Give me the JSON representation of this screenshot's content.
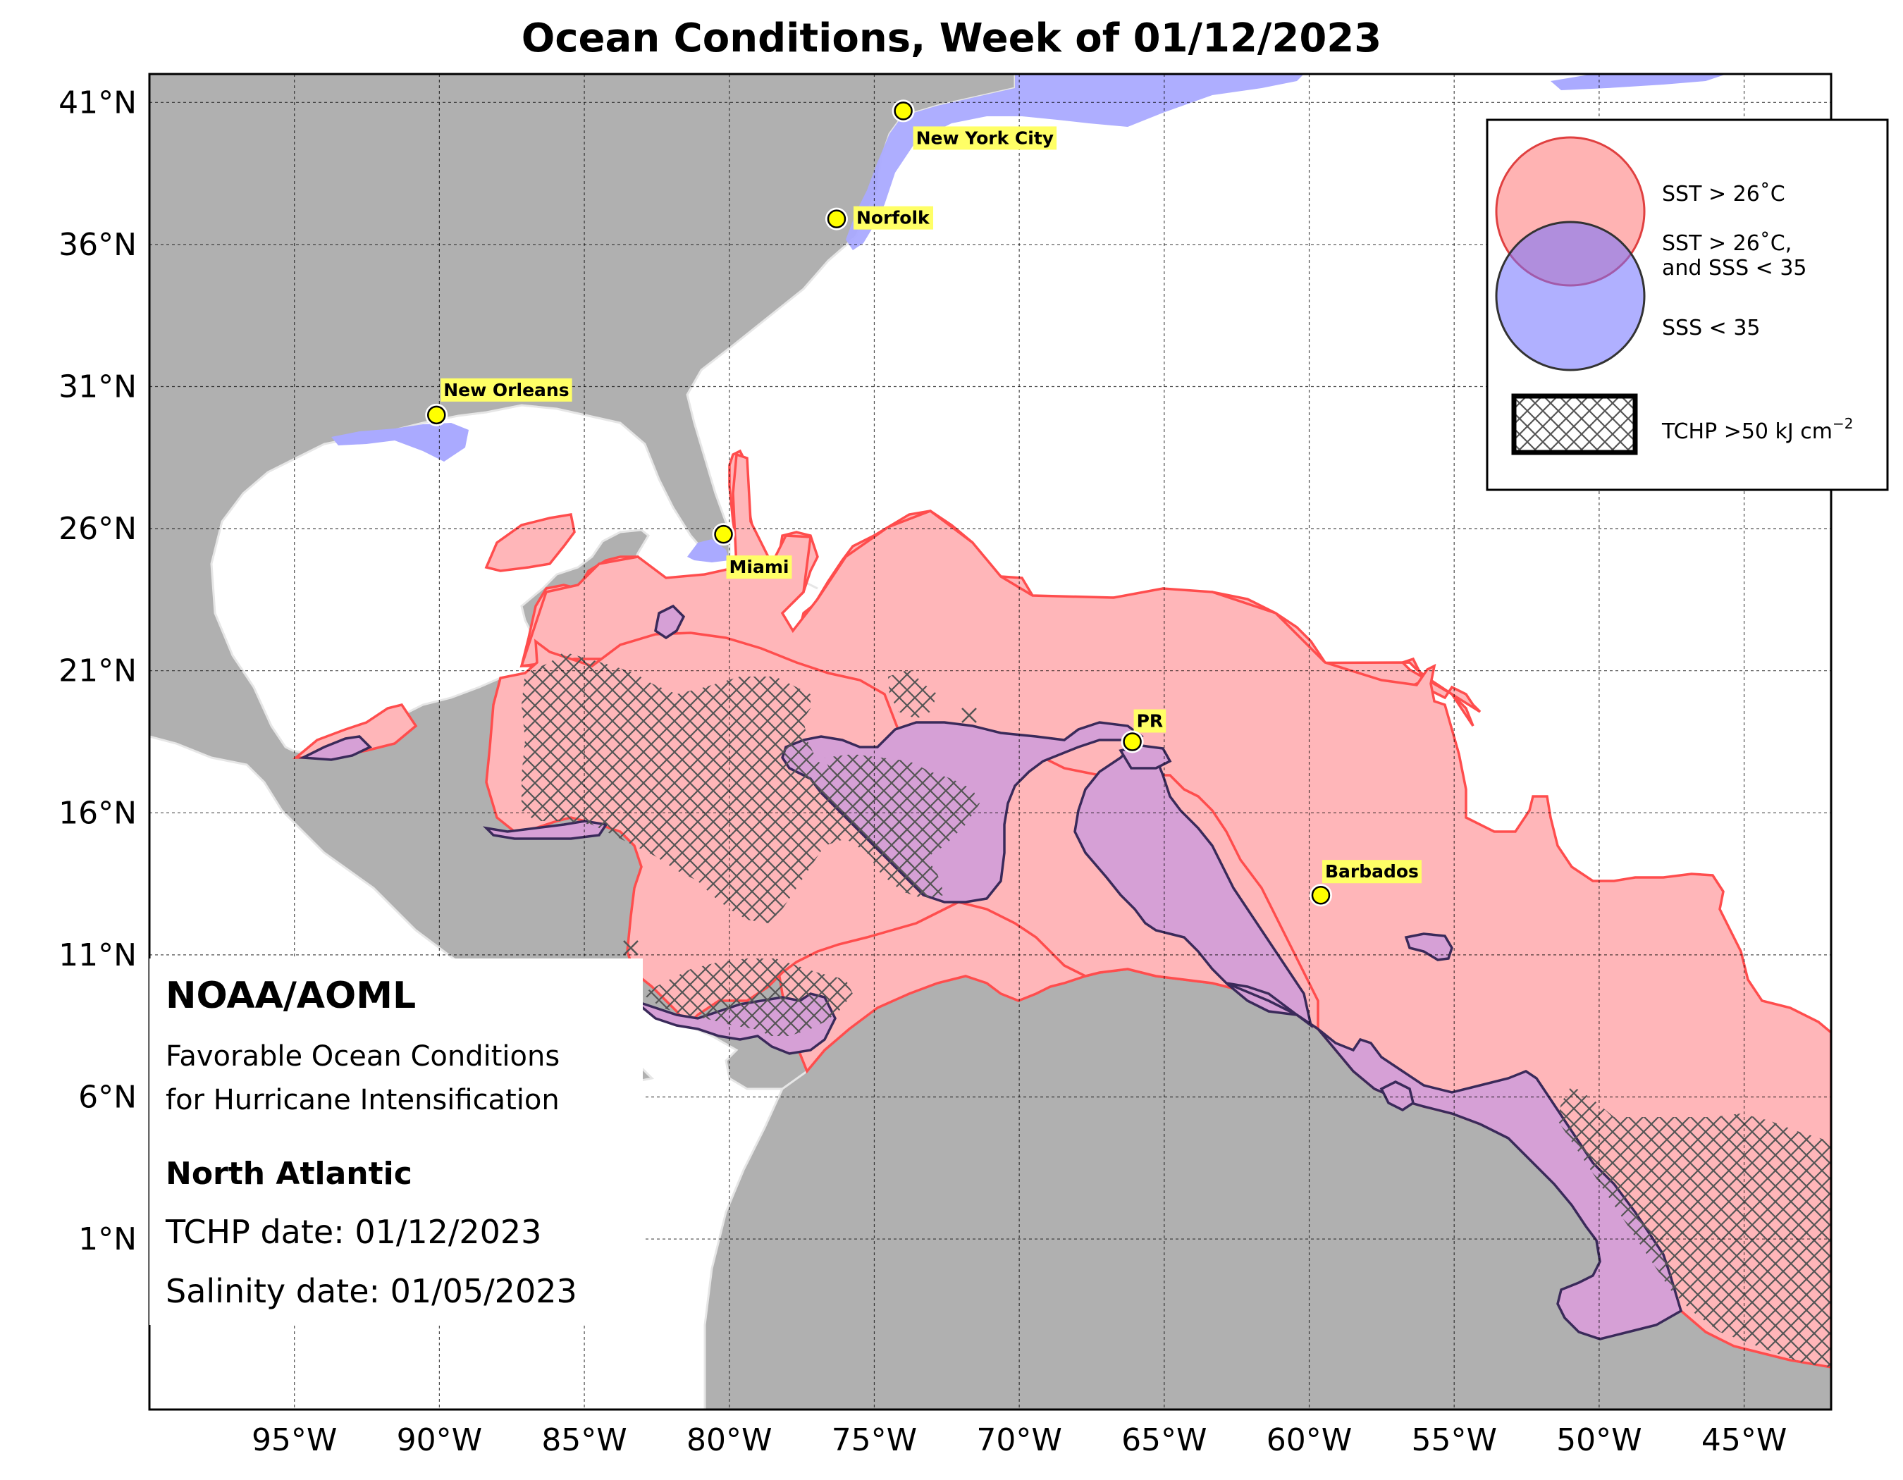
{
  "title": "Ocean Conditions, Week of 01/12/2023",
  "map": {
    "projection": "equirectangular",
    "lon_range": [
      -100,
      -42
    ],
    "lat_range": [
      -5,
      42
    ],
    "lat_ticks": [
      {
        "value": 41,
        "label": "41°N"
      },
      {
        "value": 36,
        "label": "36°N"
      },
      {
        "value": 31,
        "label": "31°N"
      },
      {
        "value": 26,
        "label": "26°N"
      },
      {
        "value": 21,
        "label": "21°N"
      },
      {
        "value": 16,
        "label": "16°N"
      },
      {
        "value": 11,
        "label": "11°N"
      },
      {
        "value": 6,
        "label": "6°N"
      },
      {
        "value": 1,
        "label": "1°N"
      }
    ],
    "lon_ticks": [
      {
        "value": -95,
        "label": "95°W"
      },
      {
        "value": -90,
        "label": "90°W"
      },
      {
        "value": -85,
        "label": "85°W"
      },
      {
        "value": -80,
        "label": "80°W"
      },
      {
        "value": -75,
        "label": "75°W"
      },
      {
        "value": -70,
        "label": "70°W"
      },
      {
        "value": -65,
        "label": "65°W"
      },
      {
        "value": -60,
        "label": "60°W"
      },
      {
        "value": -55,
        "label": "55°W"
      },
      {
        "value": -50,
        "label": "50°W"
      },
      {
        "value": -45,
        "label": "45°W"
      }
    ],
    "grid": true,
    "colors": {
      "land": "#b0b0b0",
      "ocean": "#ffffff",
      "sst": "#ffb6b9",
      "sst_edge": "#ff4d4d",
      "sss": "#aaaaff",
      "overlap": "#d6a0d6",
      "overlap_edge": "#3a2a5a",
      "city_dot": "#ffff00",
      "label_bg": "#ffff66"
    }
  },
  "cities": [
    {
      "name": "New York City",
      "lon": -74.0,
      "lat": 40.7
    },
    {
      "name": "Norfolk",
      "lon": -76.3,
      "lat": 36.9
    },
    {
      "name": "New Orleans",
      "lon": -90.1,
      "lat": 30.0
    },
    {
      "name": "Miami",
      "lon": -80.2,
      "lat": 25.8
    },
    {
      "name": "PR",
      "lon": -66.1,
      "lat": 18.5
    },
    {
      "name": "Barbados",
      "lon": -59.6,
      "lat": 13.1
    }
  ],
  "legend": {
    "sst_label": "SST > 26˚C",
    "overlap_label_line1": "SST > 26˚C,",
    "overlap_label_line2": "and SSS < 35",
    "sss_label": "SSS < 35",
    "tchp_label": "TCHP >50 kJ cm",
    "tchp_exponent": "−2"
  },
  "info": {
    "org": "NOAA/AOML",
    "desc_line1": "Favorable Ocean Conditions",
    "desc_line2": "for Hurricane Intensification",
    "region": "North Atlantic",
    "tchp_date": "TCHP date: 01/12/2023",
    "salinity_date": "Salinity date: 01/05/2023"
  }
}
